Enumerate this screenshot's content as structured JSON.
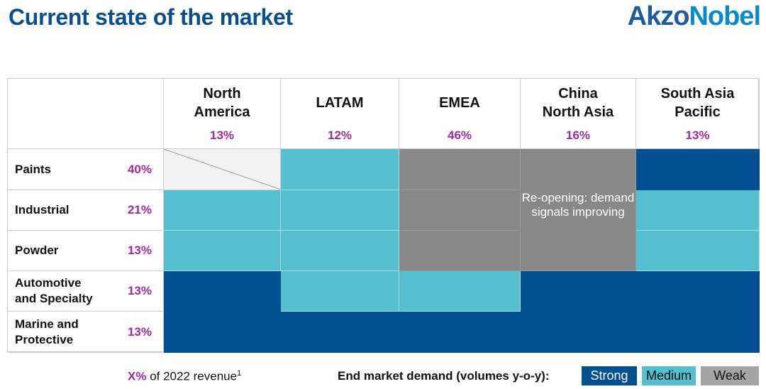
{
  "header": {
    "title": "Current state of the market",
    "logo": "AkzoNobel"
  },
  "regions": [
    {
      "name": "North America",
      "share": "13%"
    },
    {
      "name": "LATAM",
      "share": "12%"
    },
    {
      "name": "EMEA",
      "share": "46%"
    },
    {
      "name": "China North Asia",
      "share": "16%"
    },
    {
      "name": "South Asia Pacific",
      "share": "13%"
    }
  ],
  "segments": [
    {
      "name": "Paints",
      "share": "40%"
    },
    {
      "name": "Industrial",
      "share": "21%"
    },
    {
      "name": "Powder",
      "share": "13%"
    },
    {
      "name": "Automotive and Specialty",
      "share": "13%"
    },
    {
      "name": "Marine and Protective",
      "share": "13%"
    }
  ],
  "demand_matrix": [
    [
      "none",
      "medium",
      "weak",
      "weak",
      "strong"
    ],
    [
      "medium",
      "medium",
      "weak",
      "weak",
      "medium"
    ],
    [
      "medium",
      "medium",
      "weak",
      "weak",
      "medium"
    ],
    [
      "strong",
      "medium",
      "medium",
      "strong",
      "strong"
    ],
    [
      "strong",
      "strong",
      "strong",
      "strong",
      "strong"
    ]
  ],
  "china_note": "Re-opening: demand signals improving",
  "footer": {
    "x_pct": "X%",
    "revenue_text": " of 2022 revenue",
    "footnote": "1",
    "legend_title": "End market demand (volumes y-o-y):",
    "strong": "Strong",
    "medium": "Medium",
    "weak": "Weak"
  },
  "colors": {
    "strong": "#005092",
    "medium": "#55bfd0",
    "weak": "#888889",
    "share": "#9b2d9b",
    "title": "#0b4f8a"
  }
}
